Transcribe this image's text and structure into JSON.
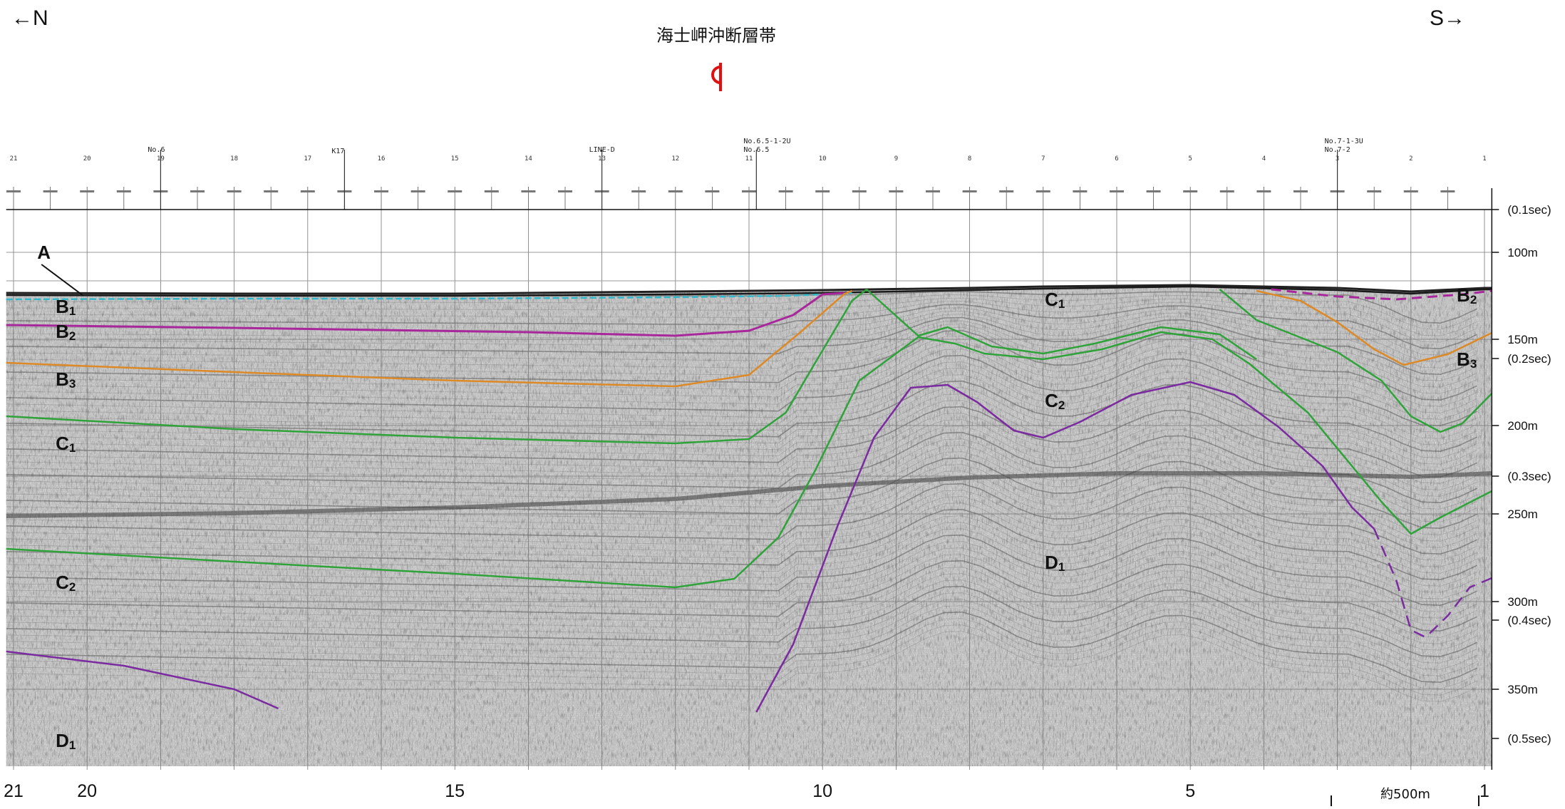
{
  "header": {
    "north_label": "←N",
    "south_label": "S→",
    "fault_title": "海士岬沖断層帯"
  },
  "colors": {
    "grid": "#777777",
    "seismic_bg": "#d4d4d4",
    "seismic_trace": "#505050",
    "surface_black": "#1a1a1a",
    "cyan": "#34b8c9",
    "magenta": "#a8289c",
    "orange": "#dd8a26",
    "green": "#2fa33a",
    "purple": "#7b2ba0",
    "fault_red": "#e01010"
  },
  "x_axis": {
    "bottom_ticks": [
      {
        "label": "21",
        "sp": 21
      },
      {
        "label": "20",
        "sp": 20
      },
      {
        "label": "15",
        "sp": 15
      },
      {
        "label": "10",
        "sp": 10
      },
      {
        "label": "5",
        "sp": 5
      },
      {
        "label": "1",
        "sp": 1
      }
    ],
    "top_ticks": [
      "21",
      "20",
      "19",
      "18",
      "17",
      "16",
      "15",
      "14",
      "13",
      "12",
      "11",
      "10",
      "9",
      "8",
      "7",
      "6",
      "5",
      "4",
      "3",
      "2",
      "1"
    ],
    "stations": [
      {
        "label": "No.6",
        "sp": 19.0
      },
      {
        "label": "K17",
        "sp": 16.5
      },
      {
        "label": "LINE-D",
        "sp": 13.0
      },
      {
        "label": "No.6.5-1-2U",
        "sp": 10.9
      },
      {
        "label": "No.6.5",
        "sp": 10.9
      },
      {
        "label": "No.7-1-3U",
        "sp": 3.0
      },
      {
        "label": "No.7-2",
        "sp": 3.0
      }
    ]
  },
  "y_axis": {
    "labels": [
      {
        "text": "(0.1sec)",
        "d": 0
      },
      {
        "text": "100m",
        "d": 60
      },
      {
        "text": "150m",
        "d": 182
      },
      {
        "text": "(0.2sec)",
        "d": 209
      },
      {
        "text": "200m",
        "d": 303
      },
      {
        "text": "(0.3sec)",
        "d": 374
      },
      {
        "text": "250m",
        "d": 427
      },
      {
        "text": "300m",
        "d": 550
      },
      {
        "text": "(0.4sec)",
        "d": 576
      },
      {
        "text": "350m",
        "d": 673
      },
      {
        "text": "(0.5sec)",
        "d": 742
      }
    ]
  },
  "units": [
    {
      "main": "A",
      "sub": "",
      "sp": 20.6,
      "d": 60
    },
    {
      "main": "B",
      "sub": "1",
      "sp": 20.35,
      "d": 136
    },
    {
      "main": "B",
      "sub": "2",
      "sp": 20.35,
      "d": 171
    },
    {
      "main": "B",
      "sub": "3",
      "sp": 20.35,
      "d": 238
    },
    {
      "main": "C",
      "sub": "1",
      "sp": 20.35,
      "d": 328
    },
    {
      "main": "C",
      "sub": "2",
      "sp": 20.35,
      "d": 523
    },
    {
      "main": "D",
      "sub": "1",
      "sp": 20.35,
      "d": 745
    },
    {
      "main": "C",
      "sub": "1",
      "sp": 6.9,
      "d": 126
    },
    {
      "main": "C",
      "sub": "2",
      "sp": 6.9,
      "d": 268
    },
    {
      "main": "D",
      "sub": "1",
      "sp": 6.9,
      "d": 495
    },
    {
      "main": "B",
      "sub": "2",
      "sp": 1.3,
      "d": 120
    },
    {
      "main": "B",
      "sub": "3",
      "sp": 1.3,
      "d": 210
    }
  ],
  "scale_bar": {
    "label": "約500m"
  }
}
